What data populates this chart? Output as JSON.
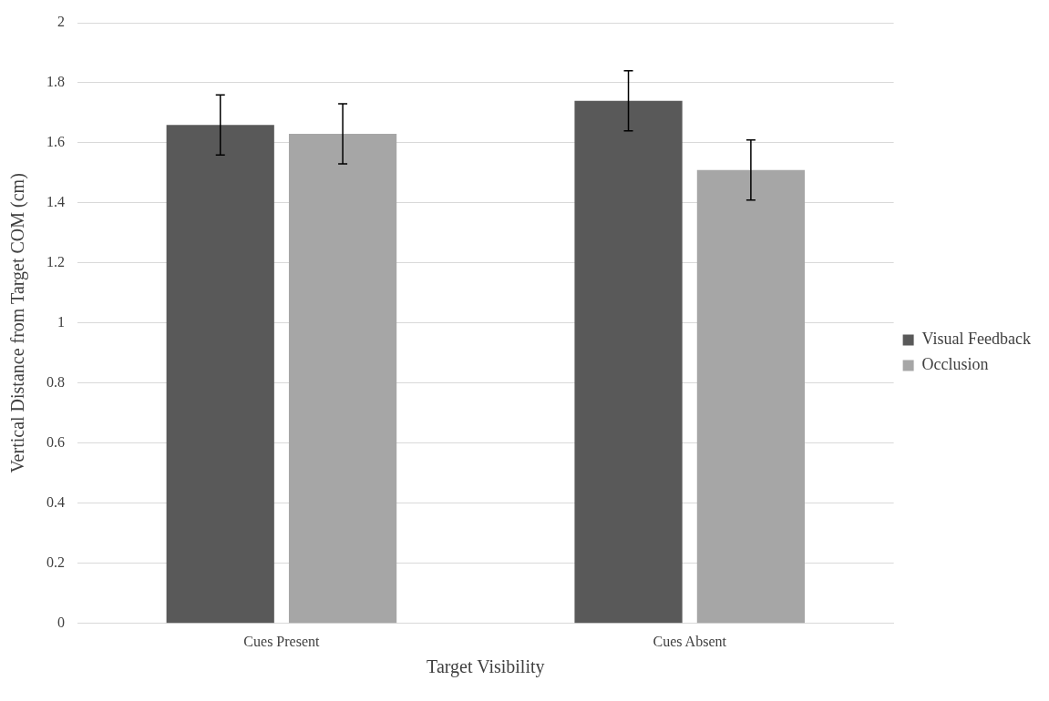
{
  "chart_data": {
    "type": "bar",
    "xlabel": "Target Visibility",
    "ylabel": "Vertical Distance from Target COM (cm)",
    "categories": [
      "Cues Present",
      "Cues Absent"
    ],
    "series": [
      {
        "name": "Visual Feedback",
        "color": "#595959",
        "values": [
          1.66,
          1.74
        ],
        "errors": [
          0.1,
          0.1
        ]
      },
      {
        "name": "Occlusion",
        "color": "#a6a6a6",
        "values": [
          1.63,
          1.51
        ],
        "errors": [
          0.1,
          0.1
        ]
      }
    ],
    "ylim": [
      0,
      2
    ],
    "yticks": [
      0,
      0.2,
      0.4,
      0.6,
      0.8,
      1,
      1.2,
      1.4,
      1.6,
      1.8,
      2
    ],
    "grid": "y",
    "legend": "right"
  }
}
